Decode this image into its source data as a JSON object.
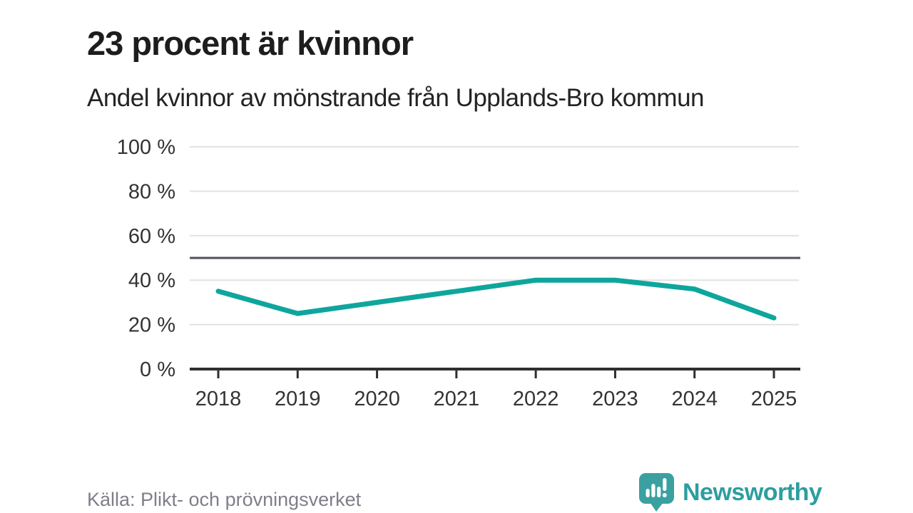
{
  "chart_data": {
    "type": "line",
    "title": "23 procent är kvinnor",
    "subtitle": "Andel kvinnor av mönstrande från Upplands-Bro kommun",
    "x": [
      2018,
      2019,
      2020,
      2021,
      2022,
      2023,
      2024,
      2025
    ],
    "series": [
      {
        "values": [
          35,
          25,
          30,
          35,
          40,
          40,
          36,
          23
        ]
      }
    ],
    "unit": "%",
    "ylim": [
      0,
      100
    ],
    "yticks": [
      0,
      20,
      40,
      60,
      80,
      100
    ],
    "ytick_suffix": " %",
    "reference_line": {
      "value": 50
    },
    "grid": true,
    "legend": "none",
    "line_color": "#0ea69c",
    "gridline_color": "#e2e2e2",
    "reference_line_color": "#50505a",
    "axis_color": "#2f2f2f",
    "tick_label_color": "#333333"
  },
  "footer": {
    "source": "Källa: Plikt- och prövningsverket",
    "logo": {
      "text": "Newsworthy",
      "color": "#2d9ea0",
      "icon_color": "#3ba0a1",
      "icon": "newsworthy-bar-chart-speech-bubble-icon"
    }
  }
}
